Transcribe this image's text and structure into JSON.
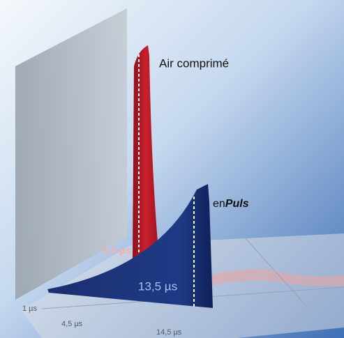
{
  "labels": {
    "air": "Air comprimé",
    "enpuls_prefix": "en",
    "enpuls_brand": "Puls",
    "red_duration": "3,5 µs",
    "blue_duration": "13,5 µs"
  },
  "axis": {
    "ticks": [
      "1 µs",
      "4,5 µs",
      "14,5 µs"
    ]
  }
}
